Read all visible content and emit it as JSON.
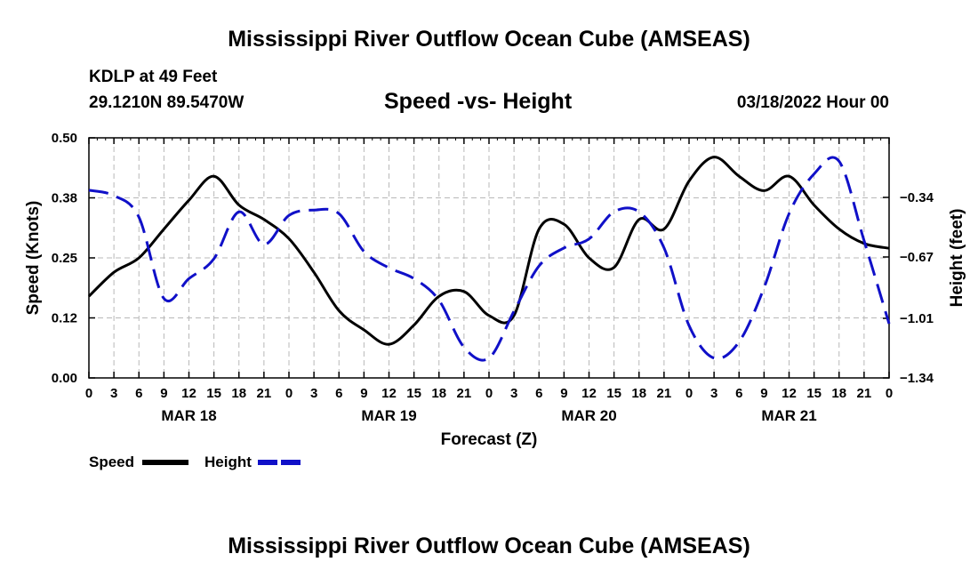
{
  "page": {
    "title": "Mississippi River Outflow Ocean Cube (AMSEAS)",
    "footer_title": "Mississippi River Outflow Ocean Cube (AMSEAS)",
    "station": "KDLP at 49 Feet",
    "coords": "29.1210N  89.5470W",
    "subtitle": "Speed -vs- Height",
    "datetime": "03/18/2022 Hour 00"
  },
  "colors": {
    "speed": "#000000",
    "height": "#1010c8",
    "grid": "#b8b8b8"
  },
  "chart_data": {
    "type": "line",
    "xlabel": "Forecast (Z)",
    "ylabel": "Speed (Knots)",
    "y2label": "Height (feet)",
    "xlim": [
      0,
      96
    ],
    "ylim": [
      0,
      0.5
    ],
    "y2lim": [
      -1.34,
      -0.01
    ],
    "x_ticks": [
      0,
      3,
      6,
      9,
      12,
      15,
      18,
      21,
      24,
      27,
      30,
      33,
      36,
      39,
      42,
      45,
      48,
      51,
      54,
      57,
      60,
      63,
      66,
      69,
      72,
      75,
      78,
      81,
      84,
      87,
      90,
      93,
      96
    ],
    "x_tick_labels": [
      "0",
      "3",
      "6",
      "9",
      "12",
      "15",
      "18",
      "21",
      "0",
      "3",
      "6",
      "9",
      "12",
      "15",
      "18",
      "21",
      "0",
      "3",
      "6",
      "9",
      "12",
      "15",
      "18",
      "21",
      "0",
      "3",
      "6",
      "9",
      "12",
      "15",
      "18",
      "21",
      "0"
    ],
    "day_labels": [
      {
        "label": "MAR 18",
        "x": 12
      },
      {
        "label": "MAR 19",
        "x": 36
      },
      {
        "label": "MAR 20",
        "x": 60
      },
      {
        "label": "MAR 21",
        "x": 84
      }
    ],
    "y_ticks": [
      0,
      0.125,
      0.25,
      0.375,
      0.5
    ],
    "y_tick_labels": [
      "0.00",
      "0.12",
      "0.25",
      "0.38",
      "0.50"
    ],
    "y2_ticks": [
      -1.34,
      -1.01,
      -0.67,
      -0.34
    ],
    "y2_tick_labels": [
      "−1.34",
      "−1.01",
      "−0.67",
      "−0.34"
    ],
    "series": [
      {
        "name": "Speed",
        "axis": "left",
        "style": "solid",
        "x": [
          0,
          3,
          6,
          9,
          12,
          15,
          18,
          21,
          24,
          27,
          30,
          33,
          36,
          39,
          42,
          45,
          48,
          51,
          54,
          57,
          60,
          63,
          66,
          69,
          72,
          75,
          78,
          81,
          84,
          87,
          90,
          93,
          96
        ],
        "values": [
          0.17,
          0.22,
          0.25,
          0.31,
          0.37,
          0.42,
          0.36,
          0.33,
          0.29,
          0.22,
          0.14,
          0.1,
          0.07,
          0.11,
          0.17,
          0.18,
          0.13,
          0.13,
          0.31,
          0.32,
          0.25,
          0.23,
          0.33,
          0.31,
          0.41,
          0.46,
          0.42,
          0.39,
          0.42,
          0.36,
          0.31,
          0.28,
          0.27
        ]
      },
      {
        "name": "Height",
        "axis": "right",
        "style": "dashed",
        "x": [
          0,
          3,
          6,
          9,
          12,
          15,
          18,
          21,
          24,
          27,
          30,
          33,
          36,
          39,
          42,
          45,
          48,
          51,
          54,
          57,
          60,
          63,
          66,
          69,
          72,
          75,
          78,
          81,
          84,
          87,
          90,
          93,
          96
        ],
        "values": [
          -0.3,
          -0.33,
          -0.45,
          -0.9,
          -0.79,
          -0.68,
          -0.42,
          -0.6,
          -0.44,
          -0.41,
          -0.43,
          -0.64,
          -0.73,
          -0.79,
          -0.91,
          -1.17,
          -1.23,
          -0.97,
          -0.72,
          -0.62,
          -0.57,
          -0.42,
          -0.42,
          -0.62,
          -1.05,
          -1.23,
          -1.14,
          -0.84,
          -0.43,
          -0.21,
          -0.14,
          -0.58,
          -1.04
        ]
      }
    ]
  },
  "legend": {
    "speed": "Speed",
    "height": "Height"
  }
}
